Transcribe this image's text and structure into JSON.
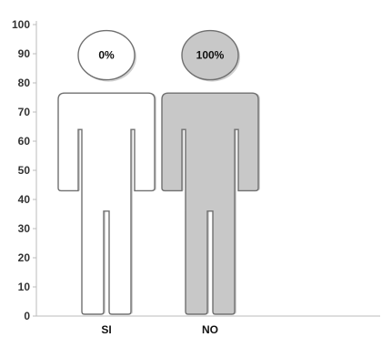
{
  "chart_data": {
    "type": "bar",
    "categories": [
      "SI",
      "NO"
    ],
    "values": [
      0,
      100
    ],
    "data_labels": [
      "0%",
      "100%"
    ],
    "ylim": [
      0,
      100
    ],
    "yticks": [
      0,
      10,
      20,
      30,
      40,
      50,
      60,
      70,
      80,
      90,
      100
    ],
    "grid": false,
    "title": "",
    "xlabel": "",
    "ylabel": "",
    "colors": {
      "filled": "#c8c8c8",
      "empty": "#ffffff",
      "outline": "#707070",
      "axis": "#bbbbbb"
    }
  }
}
